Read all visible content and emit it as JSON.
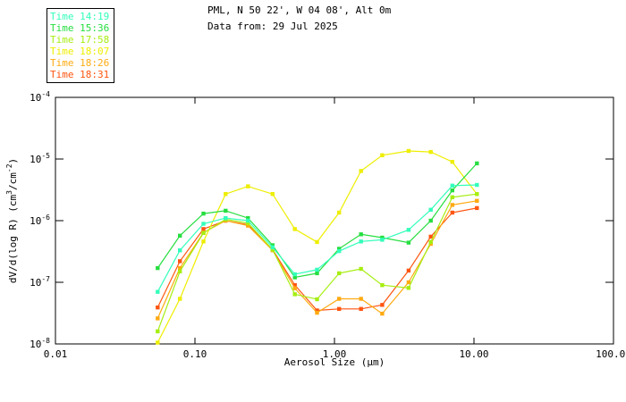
{
  "header": {
    "title": "PML, N 50 22', W 04 08', Alt 0m",
    "subtitle": "Data from: 29 Jul 2025"
  },
  "legend": {
    "items": [
      {
        "label": "Time 14:19",
        "color": "#33FFBB"
      },
      {
        "label": "Time 15:36",
        "color": "#26DE40"
      },
      {
        "label": "Time 17:58",
        "color": "#A6EE11"
      },
      {
        "label": "Time 18:07",
        "color": "#EEEE00"
      },
      {
        "label": "Time 18:26",
        "color": "#FFAA11"
      },
      {
        "label": "Time 18:31",
        "color": "#FF5511"
      }
    ]
  },
  "chart_data": {
    "type": "line",
    "title": "PML, N 50 22', W 04 08', Alt 0m",
    "xlabel": "Aerosol Size (μm)",
    "ylabel": "dV/d(log R) (cm^{3}/cm^{-2})",
    "xscale": "log",
    "yscale": "log",
    "grid": false,
    "legend_position": "top-left",
    "xlim": [
      0.01,
      100
    ],
    "ylim": [
      1e-08,
      0.0001
    ],
    "x_ticks": [
      "0.01",
      "0.10",
      "1.00",
      "10.00",
      "100.00"
    ],
    "x_tick_values": [
      0.01,
      0.1,
      1.0,
      10.0,
      100.0
    ],
    "y_ticks": [
      "10^{-8}",
      "10^{-7}",
      "10^{-6}",
      "10^{-5}",
      "10^{-4}"
    ],
    "y_tick_values": [
      1e-08,
      1e-07,
      1e-06,
      1e-05,
      0.0001
    ],
    "x": [
      0.054,
      0.078,
      0.115,
      0.166,
      0.24,
      0.36,
      0.52,
      0.75,
      1.08,
      1.55,
      2.2,
      3.4,
      4.9,
      7.0,
      10.5
    ],
    "series": [
      {
        "name": "Time 14:19",
        "color": "#33FFBB",
        "values": [
          7e-08,
          3.3e-07,
          8.9e-07,
          1.1e-06,
          1e-06,
          3.7e-07,
          1.35e-07,
          1.6e-07,
          3.2e-07,
          4.6e-07,
          4.9e-07,
          7.1e-07,
          1.5e-06,
          3.7e-06,
          3.8e-06
        ]
      },
      {
        "name": "Time 15:36",
        "color": "#26DE40",
        "values": [
          1.7e-07,
          5.7e-07,
          1.3e-06,
          1.45e-06,
          1.1e-06,
          4e-07,
          1.2e-07,
          1.4e-07,
          3.5e-07,
          6e-07,
          5.3e-07,
          4.4e-07,
          1e-06,
          3.1e-06,
          8.5e-06
        ]
      },
      {
        "name": "Time 17:58",
        "color": "#A6EE11",
        "values": [
          1.6e-08,
          1.5e-07,
          6.3e-07,
          1.05e-06,
          9.1e-07,
          3.4e-07,
          6.4e-08,
          5.3e-08,
          1.4e-07,
          1.65e-07,
          9e-08,
          8.1e-08,
          4.5e-07,
          2.4e-06,
          2.7e-06
        ]
      },
      {
        "name": "Time 18:07",
        "color": "#EEEE00",
        "values": [
          1.05e-08,
          5.4e-08,
          4.6e-07,
          2.7e-06,
          3.6e-06,
          2.7e-06,
          7.3e-07,
          4.5e-07,
          1.35e-06,
          6.4e-06,
          1.15e-05,
          1.35e-05,
          1.3e-05,
          9e-06,
          2.7e-06
        ]
      },
      {
        "name": "Time 18:26",
        "color": "#FFAA11",
        "values": [
          2.6e-08,
          1.7e-07,
          6.4e-07,
          1e-06,
          8.3e-07,
          3.3e-07,
          8e-08,
          3.2e-08,
          5.4e-08,
          5.4e-08,
          3.1e-08,
          1e-07,
          4.2e-07,
          1.8e-06,
          2.1e-06
        ]
      },
      {
        "name": "Time 18:31",
        "color": "#FF5511",
        "values": [
          3.9e-08,
          2.2e-07,
          7.3e-07,
          1e-06,
          8.6e-07,
          3.4e-07,
          9e-08,
          3.5e-08,
          3.7e-08,
          3.7e-08,
          4.3e-08,
          1.55e-07,
          5.5e-07,
          1.35e-06,
          1.6e-06
        ]
      }
    ]
  }
}
